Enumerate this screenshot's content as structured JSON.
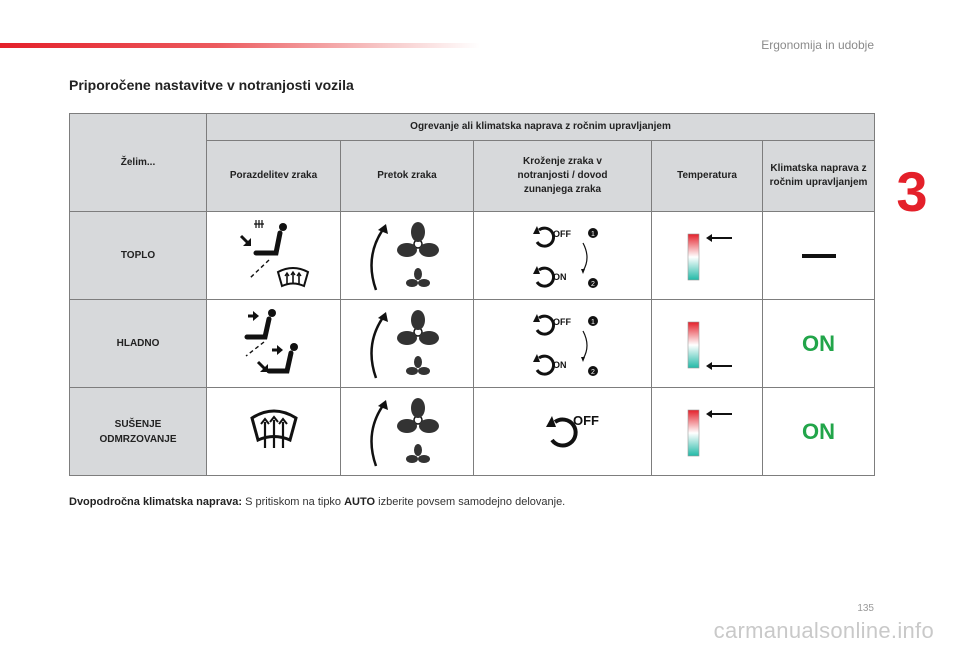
{
  "header": {
    "section_title": "Ergonomija in udobje",
    "chapter_number": "3"
  },
  "page": {
    "title": "Priporočene nastavitve v notranjosti vozila",
    "number": "135"
  },
  "table": {
    "corner_label": "Želim...",
    "group_header": "Ogrevanje ali klimatska naprava z ročnim upravljanjem",
    "columns": [
      "Porazdelitev zraka",
      "Pretok zraka",
      "Kroženje zraka v notranjosti / dovod zunanjega zraka",
      "Temperatura",
      "Klimatska naprava z ročnim upravljanjem"
    ],
    "rows": [
      {
        "label": "TOPLO",
        "distribution": [
          "defrost-occupant-icon",
          "windscreen-defrost-icon"
        ],
        "flow": "fan-speed-high-icon",
        "recirculation": {
          "first": "OFF",
          "second": "ON",
          "step1": "1",
          "step2": "2"
        },
        "temperature": "hot-setting",
        "ac": {
          "kind": "dash",
          "text": ""
        }
      },
      {
        "label": "HLADNO",
        "distribution": [
          "face-vent-icon",
          "face-and-feet-vent-icon"
        ],
        "flow": "fan-speed-high-icon",
        "recirculation": {
          "first": "OFF",
          "second": "ON",
          "step1": "1",
          "step2": "2"
        },
        "temperature": "cold-setting",
        "ac": {
          "kind": "text",
          "text": "ON"
        }
      },
      {
        "label": "SUŠENJE ODMRZOVANJE",
        "distribution": [
          "windscreen-defrost-icon"
        ],
        "flow": "fan-speed-high-icon",
        "recirculation": {
          "first": "OFF"
        },
        "temperature": "hot-setting",
        "ac": {
          "kind": "text",
          "text": "ON"
        }
      }
    ]
  },
  "note": {
    "bold_lead": "Dvopodročna klimatska naprava:",
    "text_a": " S pritiskom na tipko ",
    "bold_key": "AUTO",
    "text_b": " izberite povsem samodejno delovanje."
  },
  "watermark": "carmanualsonline.info",
  "colors": {
    "accent_red": "#e4202a",
    "on_green": "#22a54a",
    "header_gray": "#d7d9db"
  }
}
